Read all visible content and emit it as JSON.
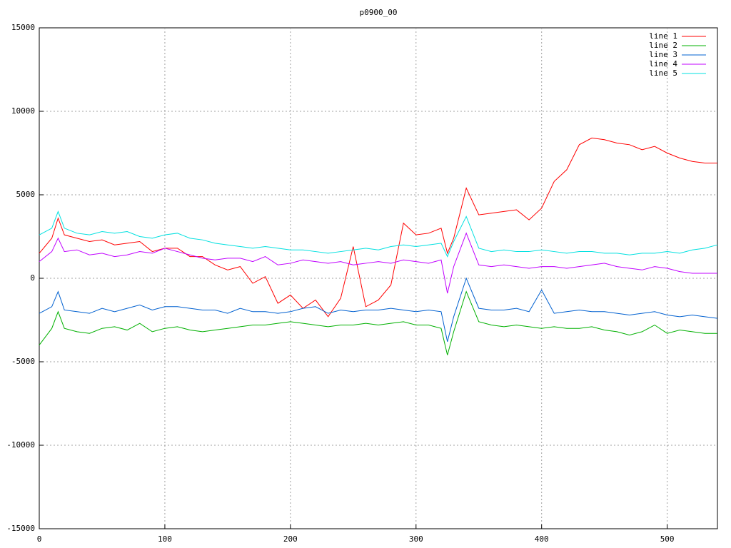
{
  "chart_data": {
    "type": "line",
    "title": "p0900_00",
    "x": [
      0,
      10,
      15,
      20,
      30,
      40,
      50,
      60,
      70,
      80,
      90,
      100,
      110,
      120,
      130,
      140,
      150,
      160,
      170,
      180,
      190,
      200,
      210,
      220,
      230,
      240,
      250,
      260,
      270,
      280,
      290,
      300,
      310,
      320,
      325,
      330,
      340,
      350,
      360,
      370,
      380,
      390,
      400,
      410,
      420,
      430,
      440,
      450,
      460,
      470,
      480,
      490,
      500,
      510,
      520,
      530,
      540
    ],
    "series": [
      {
        "name": "line 1",
        "color": "#ff0000",
        "values": [
          1500,
          2400,
          3600,
          2600,
          2400,
          2200,
          2300,
          2000,
          2100,
          2200,
          1600,
          1800,
          1800,
          1300,
          1300,
          800,
          500,
          700,
          -300,
          100,
          -1500,
          -1000,
          -1800,
          -1300,
          -2300,
          -1200,
          1900,
          -1700,
          -1300,
          -400,
          3300,
          2600,
          2700,
          3000,
          1500,
          2400,
          5400,
          3800,
          3900,
          4000,
          4100,
          3500,
          4200,
          5800,
          6500,
          8000,
          8400,
          8300,
          8100,
          8000,
          7700,
          7900,
          7500,
          7200,
          7000,
          6900,
          6900
        ]
      },
      {
        "name": "line 2",
        "color": "#00b000",
        "values": [
          -4000,
          -3000,
          -2000,
          -3000,
          -3200,
          -3300,
          -3000,
          -2900,
          -3100,
          -2700,
          -3200,
          -3000,
          -2900,
          -3100,
          -3200,
          -3100,
          -3000,
          -2900,
          -2800,
          -2800,
          -2700,
          -2600,
          -2700,
          -2800,
          -2900,
          -2800,
          -2800,
          -2700,
          -2800,
          -2700,
          -2600,
          -2800,
          -2800,
          -3000,
          -4600,
          -3200,
          -800,
          -2600,
          -2800,
          -2900,
          -2800,
          -2900,
          -3000,
          -2900,
          -3000,
          -3000,
          -2900,
          -3100,
          -3200,
          -3400,
          -3200,
          -2800,
          -3300,
          -3100,
          -3200,
          -3300,
          -3300
        ]
      },
      {
        "name": "line 3",
        "color": "#0060d0",
        "values": [
          -2100,
          -1700,
          -800,
          -1900,
          -2000,
          -2100,
          -1800,
          -2000,
          -1800,
          -1600,
          -1900,
          -1700,
          -1700,
          -1800,
          -1900,
          -1900,
          -2100,
          -1800,
          -2000,
          -2000,
          -2100,
          -2000,
          -1800,
          -1700,
          -2100,
          -1900,
          -2000,
          -1900,
          -1900,
          -1800,
          -1900,
          -2000,
          -1900,
          -2000,
          -3800,
          -2300,
          0,
          -1800,
          -1900,
          -1900,
          -1800,
          -2000,
          -700,
          -2100,
          -2000,
          -1900,
          -2000,
          -2000,
          -2100,
          -2200,
          -2100,
          -2000,
          -2200,
          -2300,
          -2200,
          -2300,
          -2400
        ]
      },
      {
        "name": "line 4",
        "color": "#c000ff",
        "values": [
          1000,
          1600,
          2400,
          1600,
          1700,
          1400,
          1500,
          1300,
          1400,
          1600,
          1500,
          1800,
          1600,
          1400,
          1200,
          1100,
          1200,
          1200,
          1000,
          1300,
          800,
          900,
          1100,
          1000,
          900,
          1000,
          800,
          900,
          1000,
          900,
          1100,
          1000,
          900,
          1100,
          -900,
          700,
          2700,
          800,
          700,
          800,
          700,
          600,
          700,
          700,
          600,
          700,
          800,
          900,
          700,
          600,
          500,
          700,
          600,
          400,
          300,
          300,
          300
        ]
      },
      {
        "name": "line 5",
        "color": "#00e0e0",
        "values": [
          2600,
          3000,
          4000,
          3000,
          2700,
          2600,
          2800,
          2700,
          2800,
          2500,
          2400,
          2600,
          2700,
          2400,
          2300,
          2100,
          2000,
          1900,
          1800,
          1900,
          1800,
          1700,
          1700,
          1600,
          1500,
          1600,
          1700,
          1800,
          1700,
          1900,
          2000,
          1900,
          2000,
          2100,
          1300,
          2200,
          3700,
          1800,
          1600,
          1700,
          1600,
          1600,
          1700,
          1600,
          1500,
          1600,
          1600,
          1500,
          1500,
          1400,
          1500,
          1500,
          1600,
          1500,
          1700,
          1800,
          2000
        ]
      }
    ],
    "xlim": [
      0,
      540
    ],
    "ylim": [
      -15000,
      15000
    ],
    "xticks": [
      0,
      100,
      200,
      300,
      400,
      500
    ],
    "yticks": [
      -15000,
      -10000,
      -5000,
      0,
      5000,
      10000,
      15000
    ],
    "grid": true,
    "legend": "top-right"
  }
}
